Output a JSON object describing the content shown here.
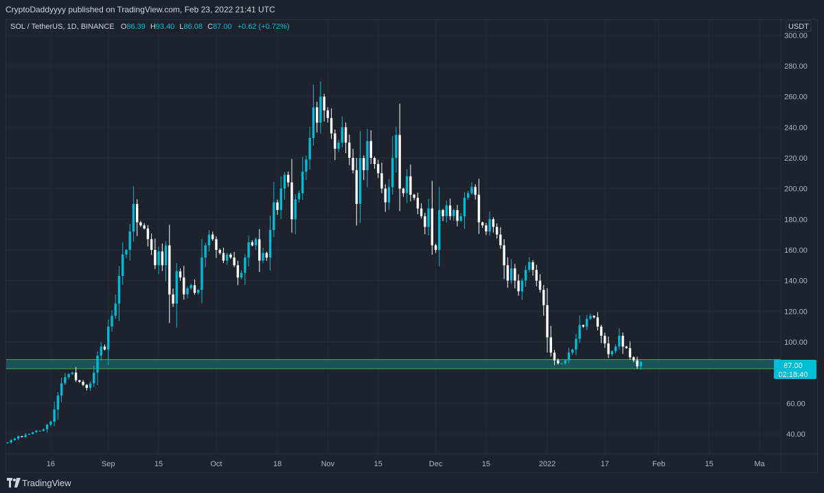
{
  "header": {
    "attribution": "CryptoDaddyyyy published on TradingView.com, Feb 23, 2022 21:41 UTC"
  },
  "legend": {
    "symbol": "SOL / TetherUS, 1D, BINANCE",
    "o_label": "O",
    "o_value": "86.39",
    "h_label": "H",
    "h_value": "93.40",
    "l_label": "L",
    "l_value": "86.08",
    "c_label": "C",
    "c_value": "87.00",
    "change": "+0.62 (+0.72%)"
  },
  "footer": {
    "brand": "TradingView"
  },
  "colors": {
    "background": "#1e222d",
    "up": "#00bcd4",
    "down": "#ffffff",
    "zone_fill": "#1c5a63",
    "zone_border": "#4caf50",
    "text": "#d1d4dc",
    "axis_text": "#b2b5be"
  },
  "chart_data": {
    "type": "candlestick",
    "currency": "USDT",
    "ylim": [
      27,
      310
    ],
    "y_ticks": [
      300,
      280,
      260,
      240,
      220,
      200,
      180,
      160,
      140,
      120,
      100,
      60,
      40
    ],
    "y_tick_labels": [
      "300.00",
      "280.00",
      "260.00",
      "240.00",
      "220.00",
      "200.00",
      "180.00",
      "160.00",
      "140.00",
      "120.00",
      "100.00",
      "60.00",
      "40.00"
    ],
    "last_price": "87.00",
    "countdown": "02:18:40",
    "x_ticks": [
      {
        "label": "16",
        "date": "2021-08-16"
      },
      {
        "label": "Sep",
        "date": "2021-09-01"
      },
      {
        "label": "15",
        "date": "2021-09-15"
      },
      {
        "label": "Oct",
        "date": "2021-10-01"
      },
      {
        "label": "18",
        "date": "2021-10-18"
      },
      {
        "label": "Nov",
        "date": "2021-11-01"
      },
      {
        "label": "15",
        "date": "2021-11-15"
      },
      {
        "label": "Dec",
        "date": "2021-12-01"
      },
      {
        "label": "15",
        "date": "2021-12-15"
      },
      {
        "label": "2022",
        "date": "2022-01-01"
      },
      {
        "label": "17",
        "date": "2022-01-17"
      },
      {
        "label": "Feb",
        "date": "2022-02-01"
      },
      {
        "label": "15",
        "date": "2022-02-15"
      },
      {
        "label": "Ma",
        "date": "2022-03-01"
      }
    ],
    "support_zone": {
      "top": 88.5,
      "bottom": 82.5
    },
    "start_date": "2021-08-04",
    "closes": [
      34.5,
      36,
      37,
      38.5,
      38,
      39.5,
      40,
      41,
      42,
      42,
      43,
      46,
      48,
      56,
      65,
      73,
      77,
      79,
      80,
      75,
      74,
      72,
      70,
      73,
      80,
      91,
      97,
      95,
      110,
      117,
      125,
      143,
      157,
      160,
      172,
      190,
      178,
      176,
      174,
      167,
      160,
      150,
      159,
      150,
      163,
      131,
      125,
      146,
      142,
      131,
      135,
      137,
      132,
      134,
      155,
      163,
      170,
      167,
      160,
      158,
      153,
      157,
      155,
      150,
      142,
      145,
      155,
      165,
      163,
      167,
      153,
      158,
      155,
      173,
      191,
      186,
      200,
      209,
      204,
      180,
      193,
      197,
      211,
      219,
      233,
      253,
      243,
      260,
      251,
      246,
      236,
      226,
      230,
      240,
      230,
      220,
      212,
      190,
      220,
      212,
      231,
      220,
      216,
      210,
      200,
      191,
      201,
      220,
      235,
      200,
      197,
      208,
      196,
      194,
      187,
      182,
      175,
      187,
      163,
      160,
      186,
      182,
      189,
      182,
      186,
      179,
      182,
      194,
      197,
      201,
      196,
      178,
      176,
      172,
      180,
      175,
      170,
      163,
      150,
      140,
      148,
      140,
      133,
      140,
      147,
      152,
      147,
      140,
      134,
      124,
      103,
      93,
      88,
      86,
      86,
      88,
      93,
      95,
      102,
      111,
      110,
      115,
      117,
      116,
      110,
      104,
      99,
      92,
      94,
      97,
      104,
      97,
      96,
      90,
      88,
      84,
      87
    ]
  }
}
